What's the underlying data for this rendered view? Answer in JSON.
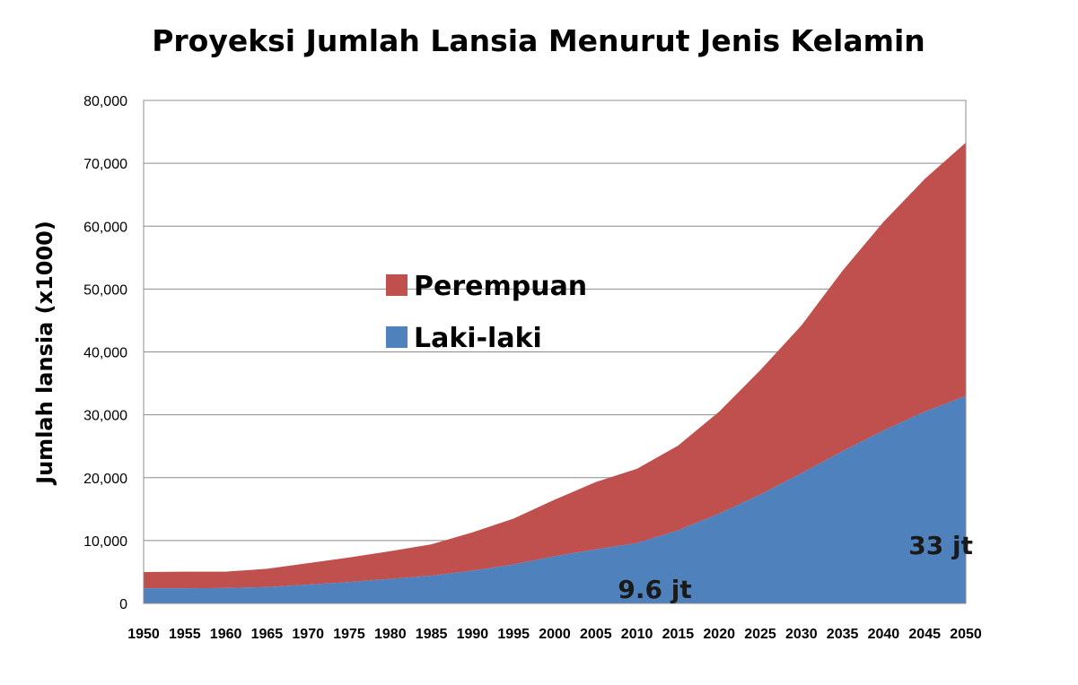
{
  "chart_data": {
    "type": "area",
    "stacked": true,
    "title": "Proyeksi Jumlah Lansia Menurut Jenis Kelamin",
    "xlabel": "",
    "ylabel": "Jumlah lansia (x1000)",
    "ylim": [
      0,
      80000
    ],
    "yticks": [
      "0",
      "10,000",
      "20,000",
      "30,000",
      "40,000",
      "50,000",
      "60,000",
      "70,000",
      "80,000"
    ],
    "ytick_values": [
      0,
      10000,
      20000,
      30000,
      40000,
      50000,
      60000,
      70000,
      80000
    ],
    "categories": [
      "1950",
      "1955",
      "1960",
      "1965",
      "1970",
      "1975",
      "1980",
      "1985",
      "1990",
      "1995",
      "2000",
      "2005",
      "2010",
      "2015",
      "2020",
      "2025",
      "2030",
      "2035",
      "2040",
      "2045",
      "2050"
    ],
    "grid": true,
    "legend_position": "center-left",
    "series": [
      {
        "name": "Laki-laki",
        "color": "#4f81bd",
        "values": [
          2400,
          2400,
          2450,
          2600,
          3000,
          3400,
          3900,
          4400,
          5200,
          6200,
          7500,
          8600,
          9600,
          11600,
          14300,
          17300,
          20700,
          24200,
          27500,
          30500,
          33000
        ]
      },
      {
        "name": "Perempuan",
        "color": "#c0504d",
        "values": [
          2600,
          2650,
          2600,
          2900,
          3400,
          3900,
          4400,
          5000,
          6100,
          7300,
          9000,
          10700,
          11800,
          13500,
          16200,
          19800,
          23500,
          28700,
          33200,
          37000,
          40300
        ]
      }
    ],
    "annotations": [
      {
        "text": "9.6 jt",
        "x": "2010",
        "series": "Laki-laki"
      },
      {
        "text": "33 jt",
        "x": "2050",
        "series": "Laki-laki"
      }
    ]
  }
}
